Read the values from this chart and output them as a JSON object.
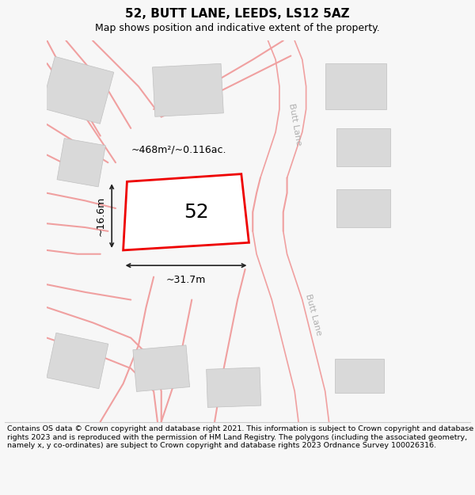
{
  "title": "52, BUTT LANE, LEEDS, LS12 5AZ",
  "subtitle": "Map shows position and indicative extent of the property.",
  "footer": "Contains OS data © Crown copyright and database right 2021. This information is subject to Crown copyright and database rights 2023 and is reproduced with the permission of HM Land Registry. The polygons (including the associated geometry, namely x, y co-ordinates) are subject to Crown copyright and database rights 2023 Ordnance Survey 100026316.",
  "bg_color": "#f7f7f7",
  "map_bg_color": "#ffffff",
  "plot_color": "#ee0000",
  "road_color": "#f0a0a0",
  "building_color": "#d9d9d9",
  "building_edge_color": "#c0c0c0",
  "label_52": "52",
  "area_label": "~468m²/~0.116ac.",
  "width_label": "~31.7m",
  "height_label": "~16.6m",
  "road_label_1": "Butt Lane",
  "road_label_2": "Butt Lane",
  "figsize": [
    6.0,
    6.25
  ],
  "dpi": 100,
  "title_fontsize": 11,
  "subtitle_fontsize": 9,
  "footer_fontsize": 6.8,
  "map_label_fontsize": 9,
  "number_fontsize": 18
}
